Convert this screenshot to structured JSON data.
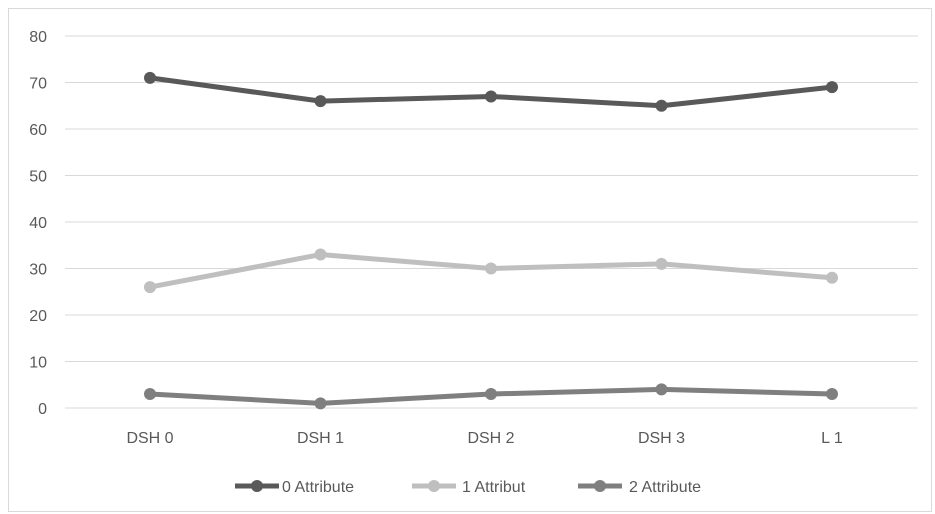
{
  "chart_data": {
    "type": "line",
    "title": "",
    "xlabel": "",
    "ylabel": "",
    "categories": [
      "DSH 0",
      "DSH 1",
      "DSH 2",
      "DSH 3",
      "L 1"
    ],
    "ylim": [
      0,
      80
    ],
    "yticks": [
      0,
      10,
      20,
      30,
      40,
      50,
      60,
      70,
      80
    ],
    "grid": true,
    "legend_position": "bottom",
    "series": [
      {
        "name": "0 Attribute",
        "color": "#595959",
        "values": [
          71,
          66,
          67,
          65,
          69
        ]
      },
      {
        "name": "1 Attribut",
        "color": "#bfbfbf",
        "values": [
          26,
          33,
          30,
          31,
          28
        ]
      },
      {
        "name": "2 Attribute",
        "color": "#7f7f7f",
        "values": [
          3,
          1,
          3,
          4,
          3
        ]
      }
    ]
  }
}
